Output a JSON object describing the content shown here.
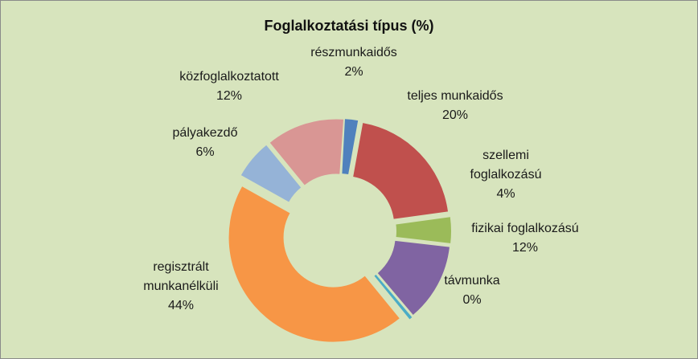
{
  "chart_data": {
    "type": "pie",
    "variant": "exploded-doughnut",
    "title": "Foglalkoztatási típus (%)",
    "background": "#d7e4bd",
    "slices": [
      {
        "label_lines": [
          "részmunkaidős"
        ],
        "value": 2,
        "value_label": "2%",
        "color": "#4f81bd"
      },
      {
        "label_lines": [
          "teljes munkaidős"
        ],
        "value": 20,
        "value_label": "20%",
        "color": "#c0504d"
      },
      {
        "label_lines": [
          "szellemi",
          "foglalkozású"
        ],
        "value": 4,
        "value_label": "4%",
        "color": "#9bbb59"
      },
      {
        "label_lines": [
          "fizikai foglalkozású"
        ],
        "value": 12,
        "value_label": "12%",
        "color": "#8064a2"
      },
      {
        "label_lines": [
          "távmunka"
        ],
        "value": 0,
        "value_label": "0%",
        "color": "#4bacc6"
      },
      {
        "label_lines": [
          "regisztrált",
          "munkanélküli"
        ],
        "value": 44,
        "value_label": "44%",
        "color": "#f79646"
      },
      {
        "label_lines": [
          "pályakezdő"
        ],
        "value": 6,
        "value_label": "6%",
        "color": "#95b3d7"
      },
      {
        "label_lines": [
          "közfoglalkoztatott"
        ],
        "value": 12,
        "value_label": "12%",
        "color": "#d99694"
      }
    ]
  }
}
